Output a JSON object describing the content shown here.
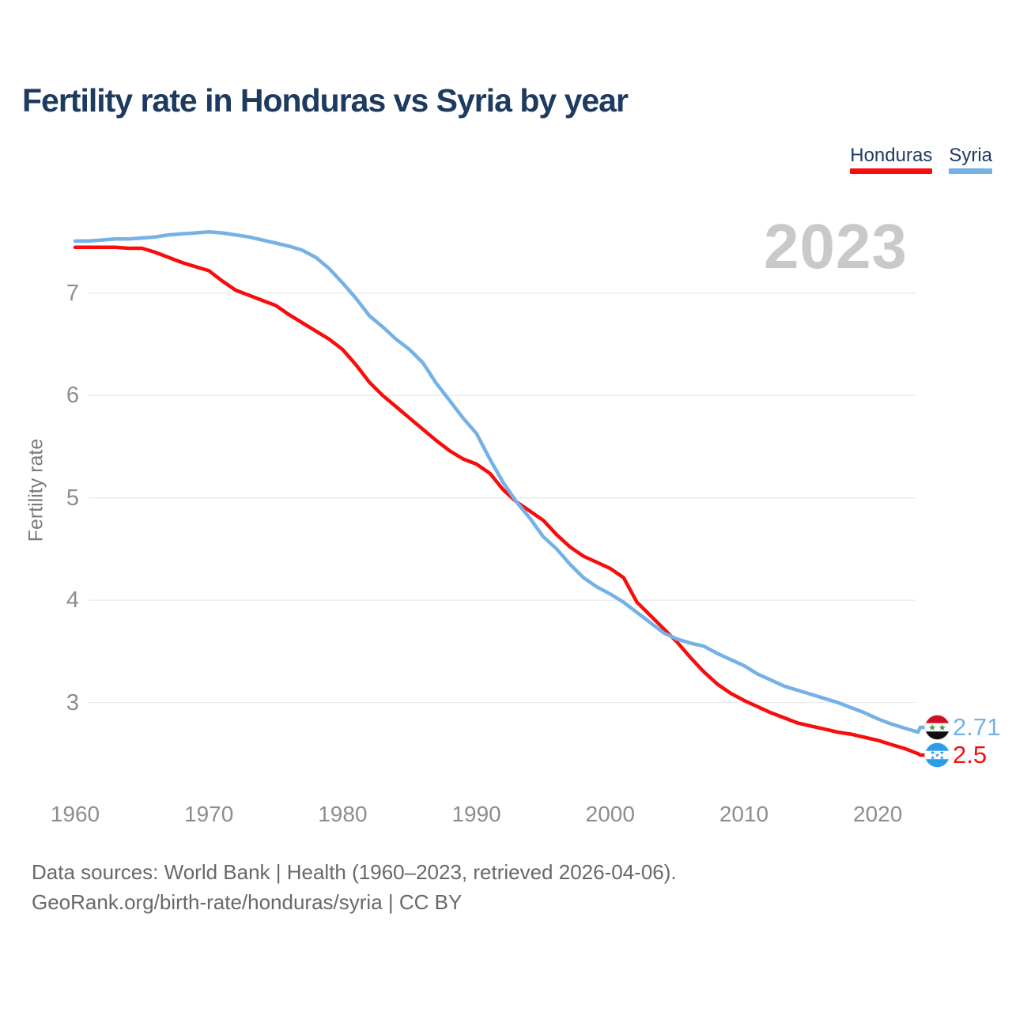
{
  "header": {
    "title": "Fertility rate in Honduras vs Syria by year"
  },
  "legend": {
    "items": [
      {
        "label": "Honduras",
        "color": "#f80c0c"
      },
      {
        "label": "Syria",
        "color": "#74b1e6"
      }
    ]
  },
  "chart": {
    "watermark_year": "2023",
    "y_axis_label": "Fertility rate"
  },
  "end_labels": {
    "syria": {
      "value": "2.71",
      "flag": "syria-flag",
      "color": "#74b1e6"
    },
    "honduras": {
      "value": "2.5",
      "flag": "honduras-flag",
      "color": "#f80c0c"
    }
  },
  "footer": {
    "line1": "Data sources: World Bank | Health (1960–2023, retrieved 2026-04-06).",
    "line2": "GeoRank.org/birth-rate/honduras/syria | CC BY"
  },
  "chart_data": {
    "type": "line",
    "title": "Fertility rate in Honduras vs Syria by year",
    "xlabel": "",
    "ylabel": "Fertility rate",
    "x_range": [
      1960,
      2023
    ],
    "ylim": [
      2.3,
      7.8
    ],
    "y_ticks": [
      3,
      4,
      5,
      6,
      7
    ],
    "x_ticks": [
      1960,
      1970,
      1980,
      1990,
      2000,
      2010,
      2020
    ],
    "grid": "horizontal",
    "legend_position": "top-right",
    "years": [
      1960,
      1961,
      1962,
      1963,
      1964,
      1965,
      1966,
      1967,
      1968,
      1969,
      1970,
      1971,
      1972,
      1973,
      1974,
      1975,
      1976,
      1977,
      1978,
      1979,
      1980,
      1981,
      1982,
      1983,
      1984,
      1985,
      1986,
      1987,
      1988,
      1989,
      1990,
      1991,
      1992,
      1993,
      1994,
      1995,
      1996,
      1997,
      1998,
      1999,
      2000,
      2001,
      2002,
      2003,
      2004,
      2005,
      2006,
      2007,
      2008,
      2009,
      2010,
      2011,
      2012,
      2013,
      2014,
      2015,
      2016,
      2017,
      2018,
      2019,
      2020,
      2021,
      2022,
      2023
    ],
    "series": [
      {
        "name": "Honduras",
        "color": "#f80c0c",
        "final_value": 2.5,
        "values": [
          7.45,
          7.45,
          7.45,
          7.45,
          7.44,
          7.44,
          7.4,
          7.35,
          7.3,
          7.26,
          7.22,
          7.12,
          7.03,
          6.98,
          6.93,
          6.88,
          6.79,
          6.71,
          6.63,
          6.55,
          6.45,
          6.3,
          6.13,
          6.0,
          5.89,
          5.78,
          5.67,
          5.56,
          5.46,
          5.38,
          5.33,
          5.24,
          5.08,
          4.96,
          4.87,
          4.78,
          4.64,
          4.52,
          4.43,
          4.37,
          4.31,
          4.22,
          3.98,
          3.85,
          3.72,
          3.59,
          3.44,
          3.3,
          3.18,
          3.09,
          3.02,
          2.96,
          2.9,
          2.85,
          2.8,
          2.77,
          2.74,
          2.71,
          2.69,
          2.66,
          2.63,
          2.59,
          2.55,
          2.5
        ]
      },
      {
        "name": "Syria",
        "color": "#74b1e6",
        "final_value": 2.71,
        "values": [
          7.51,
          7.51,
          7.52,
          7.53,
          7.53,
          7.54,
          7.55,
          7.57,
          7.58,
          7.59,
          7.6,
          7.59,
          7.57,
          7.55,
          7.52,
          7.49,
          7.46,
          7.42,
          7.35,
          7.24,
          7.1,
          6.95,
          6.78,
          6.67,
          6.55,
          6.45,
          6.32,
          6.12,
          5.95,
          5.78,
          5.63,
          5.38,
          5.15,
          4.96,
          4.8,
          4.62,
          4.5,
          4.35,
          4.22,
          4.13,
          4.06,
          3.98,
          3.88,
          3.78,
          3.68,
          3.62,
          3.58,
          3.55,
          3.48,
          3.42,
          3.36,
          3.28,
          3.22,
          3.16,
          3.12,
          3.08,
          3.04,
          3.0,
          2.95,
          2.9,
          2.84,
          2.79,
          2.75,
          2.71
        ]
      }
    ]
  }
}
